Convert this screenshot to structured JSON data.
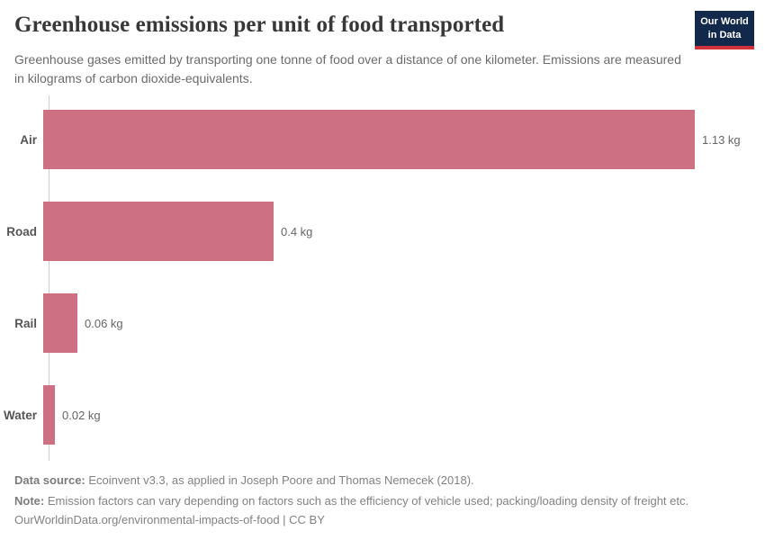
{
  "header": {
    "title": "Greenhouse emissions per unit of food transported",
    "subtitle": "Greenhouse gases emitted by transporting one tonne of food over a distance of one kilometer. Emissions are measured in kilograms of carbon dioxide-equivalents.",
    "logo": {
      "line1": "Our World",
      "line2": "in Data"
    }
  },
  "chart_data": {
    "type": "bar",
    "orientation": "horizontal",
    "title": "Greenhouse emissions per unit of food transported",
    "categories": [
      "Air",
      "Road",
      "Rail",
      "Water"
    ],
    "values": [
      1.13,
      0.4,
      0.06,
      0.02
    ],
    "value_labels": [
      "1.13 kg",
      "0.4 kg",
      "0.06 kg",
      "0.02 kg"
    ],
    "unit": "kg",
    "xlim": [
      0,
      1.13
    ],
    "grid": false,
    "legend": false,
    "bar_color": "#cd7083",
    "axis_line_color": "#d0d0d0"
  },
  "footer": {
    "data_source_label": "Data source:",
    "data_source_text": " Ecoinvent v3.3, as applied in Joseph Poore and Thomas Nemecek (2018).",
    "note_label": "Note:",
    "note_text": " Emission factors can vary depending on factors such as the efficiency of vehicle used; packing/loading density of freight etc.",
    "url": "OurWorldinData.org/environmental-impacts-of-food | CC BY"
  },
  "colors": {
    "brand_navy": "#12294b",
    "brand_red": "#cf323b",
    "bar": "#cd7083",
    "title_text": "#383838",
    "subtitle_text": "#6b6b6b",
    "footer_text": "#828282"
  }
}
